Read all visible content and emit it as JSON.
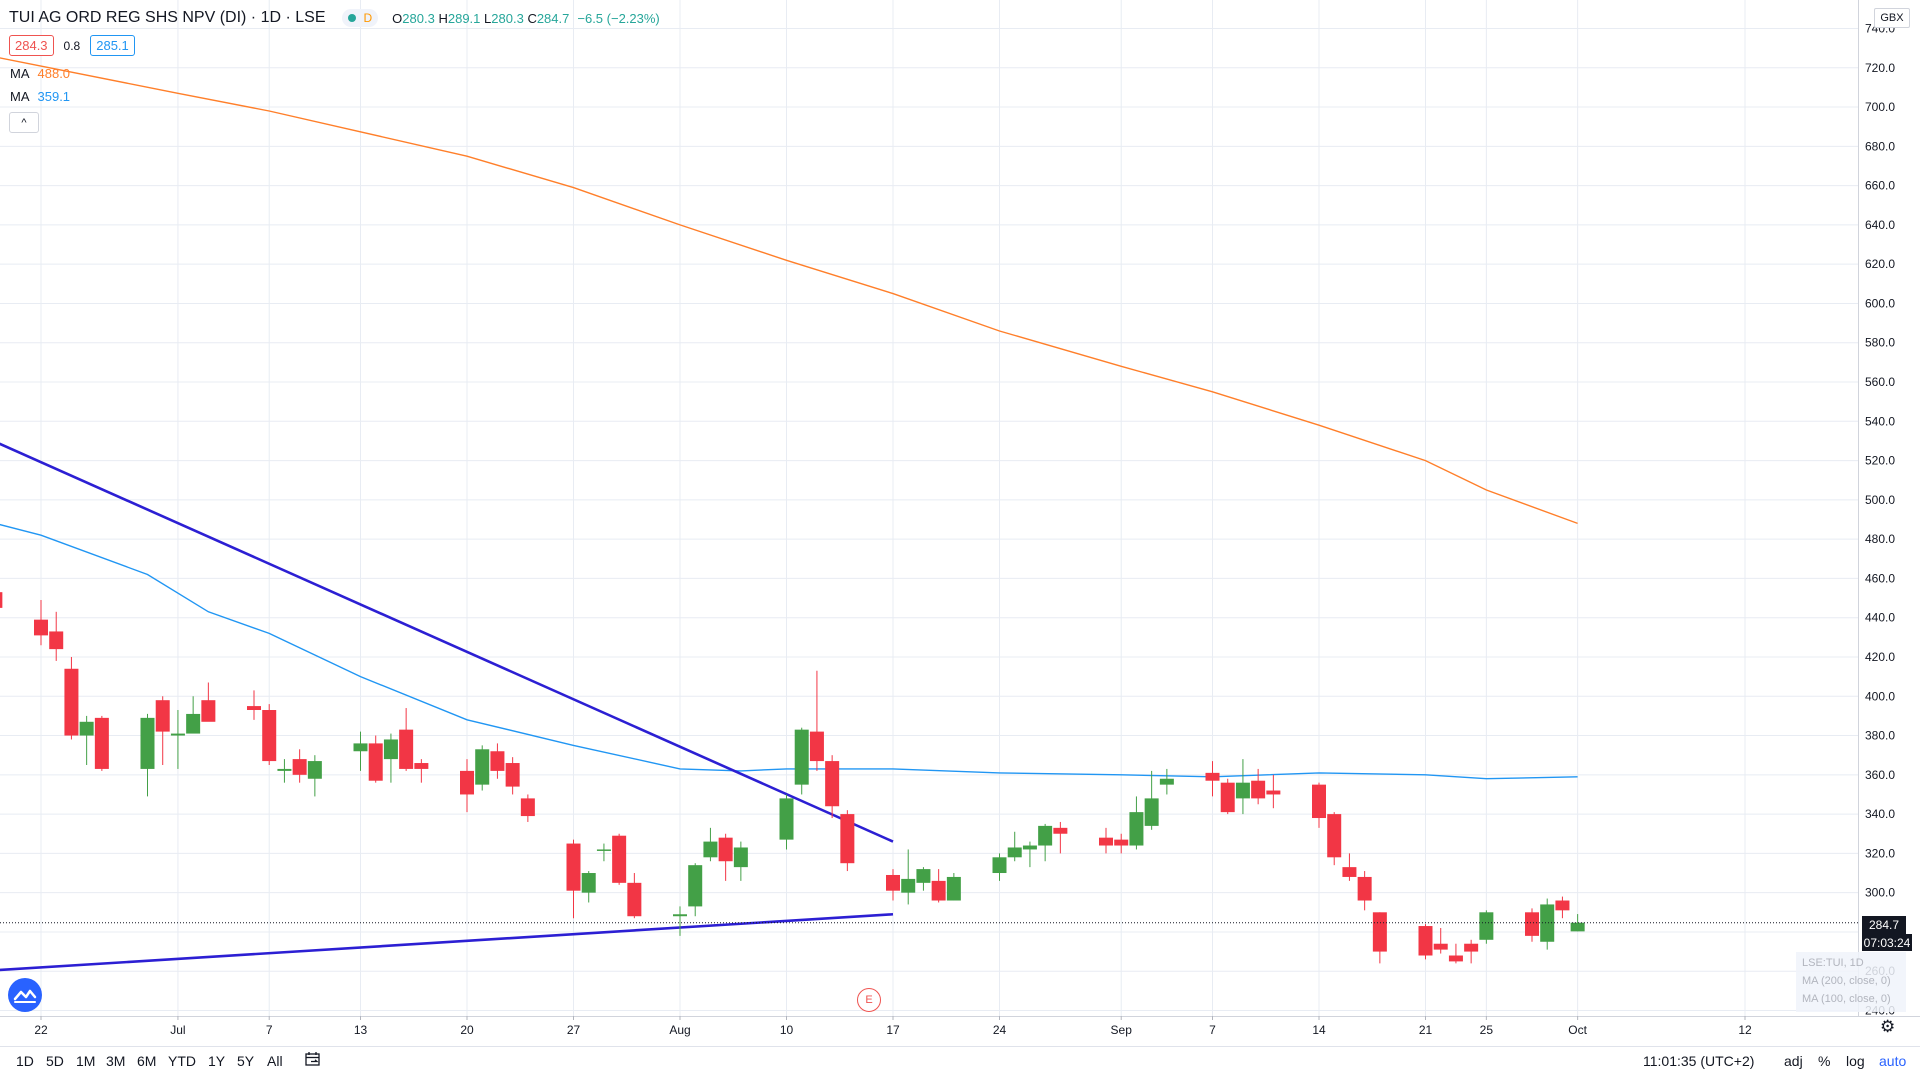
{
  "header": {
    "title": "TUI AG ORD REG SHS NPV (DI) · 1D · LSE",
    "status_letter": "D",
    "ohlc": {
      "o_label": "O",
      "o": "280.3",
      "h_label": "H",
      "h": "289.1",
      "l_label": "L",
      "l": "280.3",
      "c_label": "C",
      "c": "284.7",
      "change": "−6.5 (−2.23%)"
    }
  },
  "quote": {
    "bid": "284.3",
    "spread": "0.8",
    "ask": "285.1"
  },
  "indicators": [
    {
      "name": "MA",
      "value": "488.0",
      "color": "#ff7f2a"
    },
    {
      "name": "MA",
      "value": "359.1",
      "color": "#2196f3"
    }
  ],
  "collapse_icon": "^",
  "price_axis": {
    "unit": "GBX",
    "last_price_label": "284.7",
    "countdown": "07:03:24",
    "tick_labels": [
      "740.0",
      "720.0",
      "700.0",
      "680.0",
      "660.0",
      "640.0",
      "620.0",
      "600.0",
      "580.0",
      "560.0",
      "540.0",
      "520.0",
      "500.0",
      "480.0",
      "460.0",
      "440.0",
      "420.0",
      "400.0",
      "380.0",
      "360.0",
      "340.0",
      "320.0",
      "300.0",
      "280.0",
      "260.0",
      "240.0"
    ]
  },
  "time_axis": {
    "tick_labels": [
      "22",
      "Jul",
      "7",
      "13",
      "20",
      "27",
      "Aug",
      "10",
      "17",
      "24",
      "Sep",
      "7",
      "14",
      "21",
      "25",
      "Oct",
      "12"
    ]
  },
  "legend_ghost": [
    "LSE:TUI, 1D",
    "MA (200, close, 0)",
    "MA (100, close, 0)"
  ],
  "earnings_marker": "E",
  "bottom_bar": {
    "timeframes": [
      "1D",
      "5D",
      "1M",
      "3M",
      "6M",
      "YTD",
      "1Y",
      "5Y",
      "All"
    ],
    "clock": "11:01:35 (UTC+2)",
    "controls": [
      "adj",
      "%",
      "log",
      "auto"
    ]
  },
  "colors": {
    "up": "#43a047",
    "down": "#f23645",
    "ma200": "#ff7f2a",
    "ma100": "#2196f3",
    "trendline": "#2c1fd3",
    "grid": "#e8ecf3"
  },
  "chart_data": {
    "type": "candlestick",
    "title": "TUI AG ORD REG SHS NPV (DI) · 1D · LSE",
    "y_axis": {
      "unit": "GBX",
      "range": [
        240,
        740
      ],
      "scale": "linear"
    },
    "x_axis": {
      "range_start": "2020-06-18",
      "range_end": "2020-10-13"
    },
    "candles": [
      {
        "date": "2020-06-19",
        "o": 453,
        "h": 460,
        "l": 440,
        "c": 445
      },
      {
        "date": "2020-06-22",
        "o": 439,
        "h": 449,
        "l": 426,
        "c": 431
      },
      {
        "date": "2020-06-23",
        "o": 433,
        "h": 443,
        "l": 418,
        "c": 424
      },
      {
        "date": "2020-06-24",
        "o": 414,
        "h": 420,
        "l": 378,
        "c": 380
      },
      {
        "date": "2020-06-25",
        "o": 380,
        "h": 390,
        "l": 365,
        "c": 387
      },
      {
        "date": "2020-06-26",
        "o": 389,
        "h": 390,
        "l": 362,
        "c": 363
      },
      {
        "date": "2020-06-29",
        "o": 363,
        "h": 391,
        "l": 349,
        "c": 389
      },
      {
        "date": "2020-06-30",
        "o": 398,
        "h": 400,
        "l": 365,
        "c": 382
      },
      {
        "date": "2020-07-01",
        "o": 380,
        "h": 393,
        "l": 363,
        "c": 381
      },
      {
        "date": "2020-07-02",
        "o": 381,
        "h": 400,
        "l": 385,
        "c": 391
      },
      {
        "date": "2020-07-03",
        "o": 398,
        "h": 407,
        "l": 389,
        "c": 387
      },
      {
        "date": "2020-07-06",
        "o": 395,
        "h": 403,
        "l": 388,
        "c": 393
      },
      {
        "date": "2020-07-07",
        "o": 393,
        "h": 396,
        "l": 365,
        "c": 367
      },
      {
        "date": "2020-07-08",
        "o": 362,
        "h": 368,
        "l": 356,
        "c": 363
      },
      {
        "date": "2020-07-09",
        "o": 368,
        "h": 373,
        "l": 356,
        "c": 360
      },
      {
        "date": "2020-07-10",
        "o": 358,
        "h": 370,
        "l": 349,
        "c": 367
      },
      {
        "date": "2020-07-13",
        "o": 372,
        "h": 382,
        "l": 362,
        "c": 376
      },
      {
        "date": "2020-07-14",
        "o": 376,
        "h": 380,
        "l": 356,
        "c": 357
      },
      {
        "date": "2020-07-15",
        "o": 368,
        "h": 381,
        "l": 356,
        "c": 378
      },
      {
        "date": "2020-07-16",
        "o": 383,
        "h": 394,
        "l": 362,
        "c": 363
      },
      {
        "date": "2020-07-17",
        "o": 366,
        "h": 368,
        "l": 356,
        "c": 363
      },
      {
        "date": "2020-07-20",
        "o": 362,
        "h": 368,
        "l": 341,
        "c": 350
      },
      {
        "date": "2020-07-21",
        "o": 355,
        "h": 375,
        "l": 352,
        "c": 373
      },
      {
        "date": "2020-07-22",
        "o": 372,
        "h": 376,
        "l": 358,
        "c": 362
      },
      {
        "date": "2020-07-23",
        "o": 366,
        "h": 369,
        "l": 350,
        "c": 354
      },
      {
        "date": "2020-07-24",
        "o": 348,
        "h": 350,
        "l": 336,
        "c": 339
      },
      {
        "date": "2020-07-27",
        "o": 325,
        "h": 327,
        "l": 287,
        "c": 301
      },
      {
        "date": "2020-07-28",
        "o": 300,
        "h": 311,
        "l": 295,
        "c": 310
      },
      {
        "date": "2020-07-29",
        "o": 322,
        "h": 325,
        "l": 316,
        "c": 322
      },
      {
        "date": "2020-07-30",
        "o": 329,
        "h": 330,
        "l": 304,
        "c": 305
      },
      {
        "date": "2020-07-31",
        "o": 305,
        "h": 310,
        "l": 287,
        "c": 288
      },
      {
        "date": "2020-08-03",
        "o": 288,
        "h": 293,
        "l": 278,
        "c": 289
      },
      {
        "date": "2020-08-04",
        "o": 293,
        "h": 315,
        "l": 288,
        "c": 314
      },
      {
        "date": "2020-08-05",
        "o": 318,
        "h": 333,
        "l": 316,
        "c": 326
      },
      {
        "date": "2020-08-06",
        "o": 328,
        "h": 330,
        "l": 306,
        "c": 316
      },
      {
        "date": "2020-08-07",
        "o": 313,
        "h": 326,
        "l": 306,
        "c": 323
      },
      {
        "date": "2020-08-10",
        "o": 327,
        "h": 350,
        "l": 322,
        "c": 348
      },
      {
        "date": "2020-08-11",
        "o": 355,
        "h": 384,
        "l": 350,
        "c": 383
      },
      {
        "date": "2020-08-12",
        "o": 382,
        "h": 413,
        "l": 362,
        "c": 367
      },
      {
        "date": "2020-08-13",
        "o": 367,
        "h": 370,
        "l": 338,
        "c": 344
      },
      {
        "date": "2020-08-14",
        "o": 340,
        "h": 342,
        "l": 311,
        "c": 315
      },
      {
        "date": "2020-08-17",
        "o": 309,
        "h": 312,
        "l": 296,
        "c": 301
      },
      {
        "date": "2020-08-18",
        "o": 300,
        "h": 322,
        "l": 294,
        "c": 307
      },
      {
        "date": "2020-08-19",
        "o": 305,
        "h": 313,
        "l": 301,
        "c": 312
      },
      {
        "date": "2020-08-20",
        "o": 306,
        "h": 312,
        "l": 295,
        "c": 296
      },
      {
        "date": "2020-08-21",
        "o": 296,
        "h": 310,
        "l": 296,
        "c": 308
      },
      {
        "date": "2020-08-24",
        "o": 310,
        "h": 320,
        "l": 306,
        "c": 318
      },
      {
        "date": "2020-08-25",
        "o": 318,
        "h": 331,
        "l": 316,
        "c": 323
      },
      {
        "date": "2020-08-26",
        "o": 322,
        "h": 326,
        "l": 313,
        "c": 324
      },
      {
        "date": "2020-08-27",
        "o": 324,
        "h": 335,
        "l": 316,
        "c": 334
      },
      {
        "date": "2020-08-28",
        "o": 333,
        "h": 336,
        "l": 320,
        "c": 330
      },
      {
        "date": "2020-08-31",
        "o": 328,
        "h": 333,
        "l": 320,
        "c": 324
      },
      {
        "date": "2020-09-01",
        "o": 327,
        "h": 330,
        "l": 320,
        "c": 324
      },
      {
        "date": "2020-09-02",
        "o": 324,
        "h": 349,
        "l": 322,
        "c": 341
      },
      {
        "date": "2020-09-03",
        "o": 334,
        "h": 362,
        "l": 332,
        "c": 348
      },
      {
        "date": "2020-09-04",
        "o": 355,
        "h": 363,
        "l": 350,
        "c": 358
      },
      {
        "date": "2020-09-07",
        "o": 361,
        "h": 367,
        "l": 349,
        "c": 357
      },
      {
        "date": "2020-09-08",
        "o": 356,
        "h": 358,
        "l": 340,
        "c": 341
      },
      {
        "date": "2020-09-09",
        "o": 348,
        "h": 368,
        "l": 340,
        "c": 356
      },
      {
        "date": "2020-09-10",
        "o": 357,
        "h": 363,
        "l": 345,
        "c": 348
      },
      {
        "date": "2020-09-11",
        "o": 352,
        "h": 360,
        "l": 343,
        "c": 350
      },
      {
        "date": "2020-09-14",
        "o": 355,
        "h": 356,
        "l": 333,
        "c": 338
      },
      {
        "date": "2020-09-15",
        "o": 340,
        "h": 341,
        "l": 314,
        "c": 318
      },
      {
        "date": "2020-09-16",
        "o": 313,
        "h": 320,
        "l": 306,
        "c": 308
      },
      {
        "date": "2020-09-17",
        "o": 308,
        "h": 311,
        "l": 291,
        "c": 296
      },
      {
        "date": "2020-09-18",
        "o": 290,
        "h": 290,
        "l": 264,
        "c": 270
      },
      {
        "date": "2020-09-21",
        "o": 283,
        "h": 284,
        "l": 266,
        "c": 268
      },
      {
        "date": "2020-09-22",
        "o": 274,
        "h": 282,
        "l": 269,
        "c": 271
      },
      {
        "date": "2020-09-23",
        "o": 268,
        "h": 274,
        "l": 264,
        "c": 265
      },
      {
        "date": "2020-09-24",
        "o": 274,
        "h": 276,
        "l": 264,
        "c": 270
      },
      {
        "date": "2020-09-25",
        "o": 276,
        "h": 291,
        "l": 274,
        "c": 290
      },
      {
        "date": "2020-09-28",
        "o": 290,
        "h": 292,
        "l": 275,
        "c": 278
      },
      {
        "date": "2020-09-29",
        "o": 275,
        "h": 297,
        "l": 271,
        "c": 294
      },
      {
        "date": "2020-09-30",
        "o": 296,
        "h": 298,
        "l": 287,
        "c": 291
      },
      {
        "date": "2020-10-01",
        "o": 280.3,
        "h": 289.1,
        "l": 280.3,
        "c": 284.7
      }
    ],
    "series": [
      {
        "name": "MA (200, close, 0)",
        "color": "#ff7f2a",
        "points": [
          {
            "date": "2020-06-18",
            "v": 727
          },
          {
            "date": "2020-07-01",
            "v": 707
          },
          {
            "date": "2020-07-07",
            "v": 698
          },
          {
            "date": "2020-07-20",
            "v": 675
          },
          {
            "date": "2020-07-27",
            "v": 659
          },
          {
            "date": "2020-08-03",
            "v": 640
          },
          {
            "date": "2020-08-10",
            "v": 622
          },
          {
            "date": "2020-08-17",
            "v": 605
          },
          {
            "date": "2020-08-24",
            "v": 586
          },
          {
            "date": "2020-09-01",
            "v": 568
          },
          {
            "date": "2020-09-07",
            "v": 555
          },
          {
            "date": "2020-09-14",
            "v": 538
          },
          {
            "date": "2020-09-21",
            "v": 520
          },
          {
            "date": "2020-09-25",
            "v": 505
          },
          {
            "date": "2020-10-01",
            "v": 488
          }
        ]
      },
      {
        "name": "MA (100, close, 0)",
        "color": "#2196f3",
        "points": [
          {
            "date": "2020-06-18",
            "v": 490
          },
          {
            "date": "2020-06-22",
            "v": 482
          },
          {
            "date": "2020-06-29",
            "v": 462
          },
          {
            "date": "2020-07-03",
            "v": 443
          },
          {
            "date": "2020-07-07",
            "v": 432
          },
          {
            "date": "2020-07-13",
            "v": 410
          },
          {
            "date": "2020-07-20",
            "v": 388
          },
          {
            "date": "2020-07-27",
            "v": 375
          },
          {
            "date": "2020-08-03",
            "v": 363
          },
          {
            "date": "2020-08-07",
            "v": 362
          },
          {
            "date": "2020-08-10",
            "v": 363
          },
          {
            "date": "2020-08-17",
            "v": 363
          },
          {
            "date": "2020-08-24",
            "v": 361
          },
          {
            "date": "2020-09-01",
            "v": 360
          },
          {
            "date": "2020-09-07",
            "v": 359
          },
          {
            "date": "2020-09-14",
            "v": 361
          },
          {
            "date": "2020-09-21",
            "v": 360
          },
          {
            "date": "2020-09-25",
            "v": 358
          },
          {
            "date": "2020-10-01",
            "v": 359
          }
        ]
      }
    ],
    "drawings": [
      {
        "type": "trendline",
        "from": {
          "date": "2020-06-18",
          "v": 533
        },
        "to": {
          "date": "2020-08-17",
          "v": 326
        }
      },
      {
        "type": "trendline",
        "from": {
          "date": "2020-06-18",
          "v": 260
        },
        "to": {
          "date": "2020-08-17",
          "v": 289
        }
      }
    ],
    "last_price": 284.7,
    "grid": true
  }
}
